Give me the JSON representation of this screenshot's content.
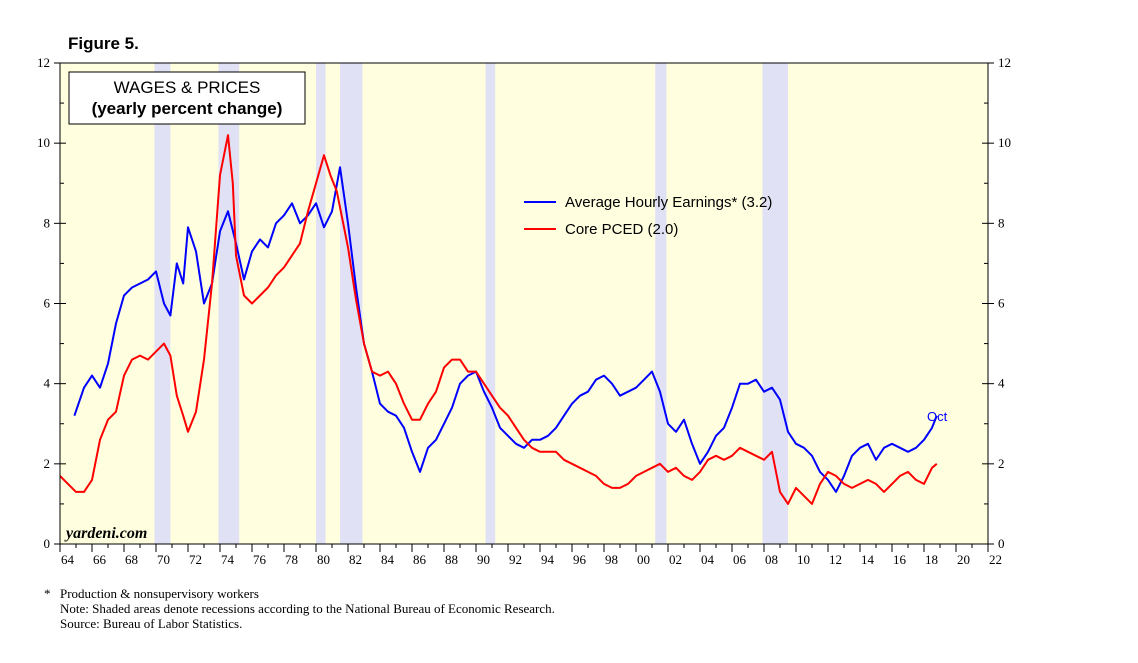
{
  "figure_label": "Figure 5.",
  "brand": "yardeni.com",
  "footnotes": {
    "star_symbol": "*",
    "star_note": "Production & nonsupervisory workers",
    "note": "Note: Shaded areas denote recessions according to the National Bureau of Economic Research.",
    "source": "Source: Bureau of Labor Statistics."
  },
  "chart_data": {
    "type": "line",
    "title": "WAGES & PRICES",
    "subtitle": "(yearly percent change)",
    "xlabel": "",
    "ylabel": "",
    "xlim": [
      1964,
      2022
    ],
    "ylim": [
      0,
      12
    ],
    "yticks": [
      0,
      2,
      4,
      6,
      8,
      10,
      12
    ],
    "ytick_labels": [
      "0",
      "2",
      "4",
      "6",
      "8",
      "10",
      "12"
    ],
    "xtick_years": [
      1964,
      1966,
      1968,
      1970,
      1972,
      1974,
      1976,
      1978,
      1980,
      1982,
      1984,
      1986,
      1988,
      1990,
      1992,
      1994,
      1996,
      1998,
      2000,
      2002,
      2004,
      2006,
      2008,
      2010,
      2012,
      2014,
      2016,
      2018,
      2020,
      2022
    ],
    "xtick_labels": [
      "64",
      "66",
      "68",
      "70",
      "72",
      "74",
      "76",
      "78",
      "80",
      "82",
      "84",
      "86",
      "88",
      "90",
      "92",
      "94",
      "96",
      "98",
      "00",
      "02",
      "04",
      "06",
      "08",
      "10",
      "12",
      "14",
      "16",
      "18",
      "20",
      "22"
    ],
    "recessions": [
      [
        1969.9,
        1970.9
      ],
      [
        1973.9,
        1975.2
      ],
      [
        1980.0,
        1980.6
      ],
      [
        1981.5,
        1982.9
      ],
      [
        1990.6,
        1991.2
      ],
      [
        2001.2,
        2001.9
      ],
      [
        2007.9,
        2009.5
      ]
    ],
    "legend_position": "top-right",
    "end_annotation": "Oct",
    "series": [
      {
        "name": "Average Hourly Earnings* (3.2)",
        "legend_label": "Average Hourly Earnings* (3.2)",
        "color": "#0000ff",
        "x": [
          1964.9,
          1965.5,
          1966.0,
          1966.5,
          1967.0,
          1967.5,
          1968.0,
          1968.5,
          1969.0,
          1969.5,
          1970.0,
          1970.5,
          1970.9,
          1971.3,
          1971.7,
          1972.0,
          1972.5,
          1973.0,
          1973.5,
          1974.0,
          1974.5,
          1975.0,
          1975.5,
          1976.0,
          1976.5,
          1977.0,
          1977.5,
          1978.0,
          1978.5,
          1979.0,
          1979.5,
          1980.0,
          1980.5,
          1981.0,
          1981.5,
          1982.0,
          1982.5,
          1983.0,
          1983.5,
          1984.0,
          1984.5,
          1985.0,
          1985.5,
          1986.0,
          1986.5,
          1987.0,
          1987.5,
          1988.0,
          1988.5,
          1989.0,
          1989.5,
          1990.0,
          1990.5,
          1991.0,
          1991.5,
          1992.0,
          1992.5,
          1993.0,
          1993.5,
          1994.0,
          1994.5,
          1995.0,
          1995.5,
          1996.0,
          1996.5,
          1997.0,
          1997.5,
          1998.0,
          1998.5,
          1999.0,
          1999.5,
          2000.0,
          2000.5,
          2001.0,
          2001.5,
          2002.0,
          2002.5,
          2003.0,
          2003.5,
          2004.0,
          2004.5,
          2005.0,
          2005.5,
          2006.0,
          2006.5,
          2007.0,
          2007.5,
          2008.0,
          2008.5,
          2009.0,
          2009.5,
          2010.0,
          2010.5,
          2011.0,
          2011.5,
          2012.0,
          2012.5,
          2013.0,
          2013.5,
          2014.0,
          2014.5,
          2015.0,
          2015.5,
          2016.0,
          2016.5,
          2017.0,
          2017.5,
          2018.0,
          2018.5,
          2018.8
        ],
        "values": [
          3.2,
          3.9,
          4.2,
          3.9,
          4.5,
          5.5,
          6.2,
          6.4,
          6.5,
          6.6,
          6.8,
          6.0,
          5.7,
          7.0,
          6.5,
          7.9,
          7.3,
          6.0,
          6.5,
          7.8,
          8.3,
          7.5,
          6.6,
          7.3,
          7.6,
          7.4,
          8.0,
          8.2,
          8.5,
          8.0,
          8.2,
          8.5,
          7.9,
          8.3,
          9.4,
          8.0,
          6.4,
          5.0,
          4.3,
          3.5,
          3.3,
          3.2,
          2.9,
          2.3,
          1.8,
          2.4,
          2.6,
          3.0,
          3.4,
          4.0,
          4.2,
          4.3,
          3.8,
          3.4,
          2.9,
          2.7,
          2.5,
          2.4,
          2.6,
          2.6,
          2.7,
          2.9,
          3.2,
          3.5,
          3.7,
          3.8,
          4.1,
          4.2,
          4.0,
          3.7,
          3.8,
          3.9,
          4.1,
          4.3,
          3.8,
          3.0,
          2.8,
          3.1,
          2.5,
          2.0,
          2.3,
          2.7,
          2.9,
          3.4,
          4.0,
          4.0,
          4.1,
          3.8,
          3.9,
          3.6,
          2.8,
          2.5,
          2.4,
          2.2,
          1.8,
          1.6,
          1.3,
          1.7,
          2.2,
          2.4,
          2.5,
          2.1,
          2.4,
          2.5,
          2.4,
          2.3,
          2.4,
          2.6,
          2.9,
          3.2
        ]
      },
      {
        "name": "Core PCED (2.0)",
        "legend_label": "Core PCED (2.0)",
        "color": "#ff0000",
        "x": [
          1964.0,
          1964.5,
          1965.0,
          1965.5,
          1966.0,
          1966.5,
          1967.0,
          1967.5,
          1968.0,
          1968.5,
          1969.0,
          1969.5,
          1970.0,
          1970.5,
          1970.9,
          1971.3,
          1971.7,
          1972.0,
          1972.5,
          1973.0,
          1973.5,
          1974.0,
          1974.5,
          1974.8,
          1975.0,
          1975.5,
          1976.0,
          1976.5,
          1977.0,
          1977.5,
          1978.0,
          1978.5,
          1979.0,
          1979.5,
          1980.0,
          1980.5,
          1980.9,
          1981.3,
          1981.7,
          1982.0,
          1982.5,
          1983.0,
          1983.5,
          1984.0,
          1984.5,
          1985.0,
          1985.5,
          1986.0,
          1986.5,
          1987.0,
          1987.5,
          1988.0,
          1988.5,
          1989.0,
          1989.5,
          1990.0,
          1990.5,
          1991.0,
          1991.5,
          1992.0,
          1992.5,
          1993.0,
          1993.5,
          1994.0,
          1994.5,
          1995.0,
          1995.5,
          1996.0,
          1996.5,
          1997.0,
          1997.5,
          1998.0,
          1998.5,
          1999.0,
          1999.5,
          2000.0,
          2000.5,
          2001.0,
          2001.5,
          2002.0,
          2002.5,
          2003.0,
          2003.5,
          2004.0,
          2004.5,
          2005.0,
          2005.5,
          2006.0,
          2006.5,
          2007.0,
          2007.5,
          2008.0,
          2008.5,
          2009.0,
          2009.5,
          2010.0,
          2010.5,
          2011.0,
          2011.5,
          2012.0,
          2012.5,
          2013.0,
          2013.5,
          2014.0,
          2014.5,
          2015.0,
          2015.5,
          2016.0,
          2016.5,
          2017.0,
          2017.5,
          2018.0,
          2018.5,
          2018.8
        ],
        "values": [
          1.7,
          1.5,
          1.3,
          1.3,
          1.6,
          2.6,
          3.1,
          3.3,
          4.2,
          4.6,
          4.7,
          4.6,
          4.8,
          5.0,
          4.7,
          3.7,
          3.2,
          2.8,
          3.3,
          4.6,
          6.5,
          9.2,
          10.2,
          9.0,
          7.2,
          6.2,
          6.0,
          6.2,
          6.4,
          6.7,
          6.9,
          7.2,
          7.5,
          8.3,
          9.0,
          9.7,
          9.2,
          8.8,
          8.0,
          7.4,
          6.1,
          5.0,
          4.3,
          4.2,
          4.3,
          4.0,
          3.5,
          3.1,
          3.1,
          3.5,
          3.8,
          4.4,
          4.6,
          4.6,
          4.3,
          4.3,
          4.0,
          3.7,
          3.4,
          3.2,
          2.9,
          2.6,
          2.4,
          2.3,
          2.3,
          2.3,
          2.1,
          2.0,
          1.9,
          1.8,
          1.7,
          1.5,
          1.4,
          1.4,
          1.5,
          1.7,
          1.8,
          1.9,
          2.0,
          1.8,
          1.9,
          1.7,
          1.6,
          1.8,
          2.1,
          2.2,
          2.1,
          2.2,
          2.4,
          2.3,
          2.2,
          2.1,
          2.3,
          1.3,
          1.0,
          1.4,
          1.2,
          1.0,
          1.5,
          1.8,
          1.7,
          1.5,
          1.4,
          1.5,
          1.6,
          1.5,
          1.3,
          1.5,
          1.7,
          1.8,
          1.6,
          1.5,
          1.9,
          2.0
        ]
      }
    ]
  }
}
